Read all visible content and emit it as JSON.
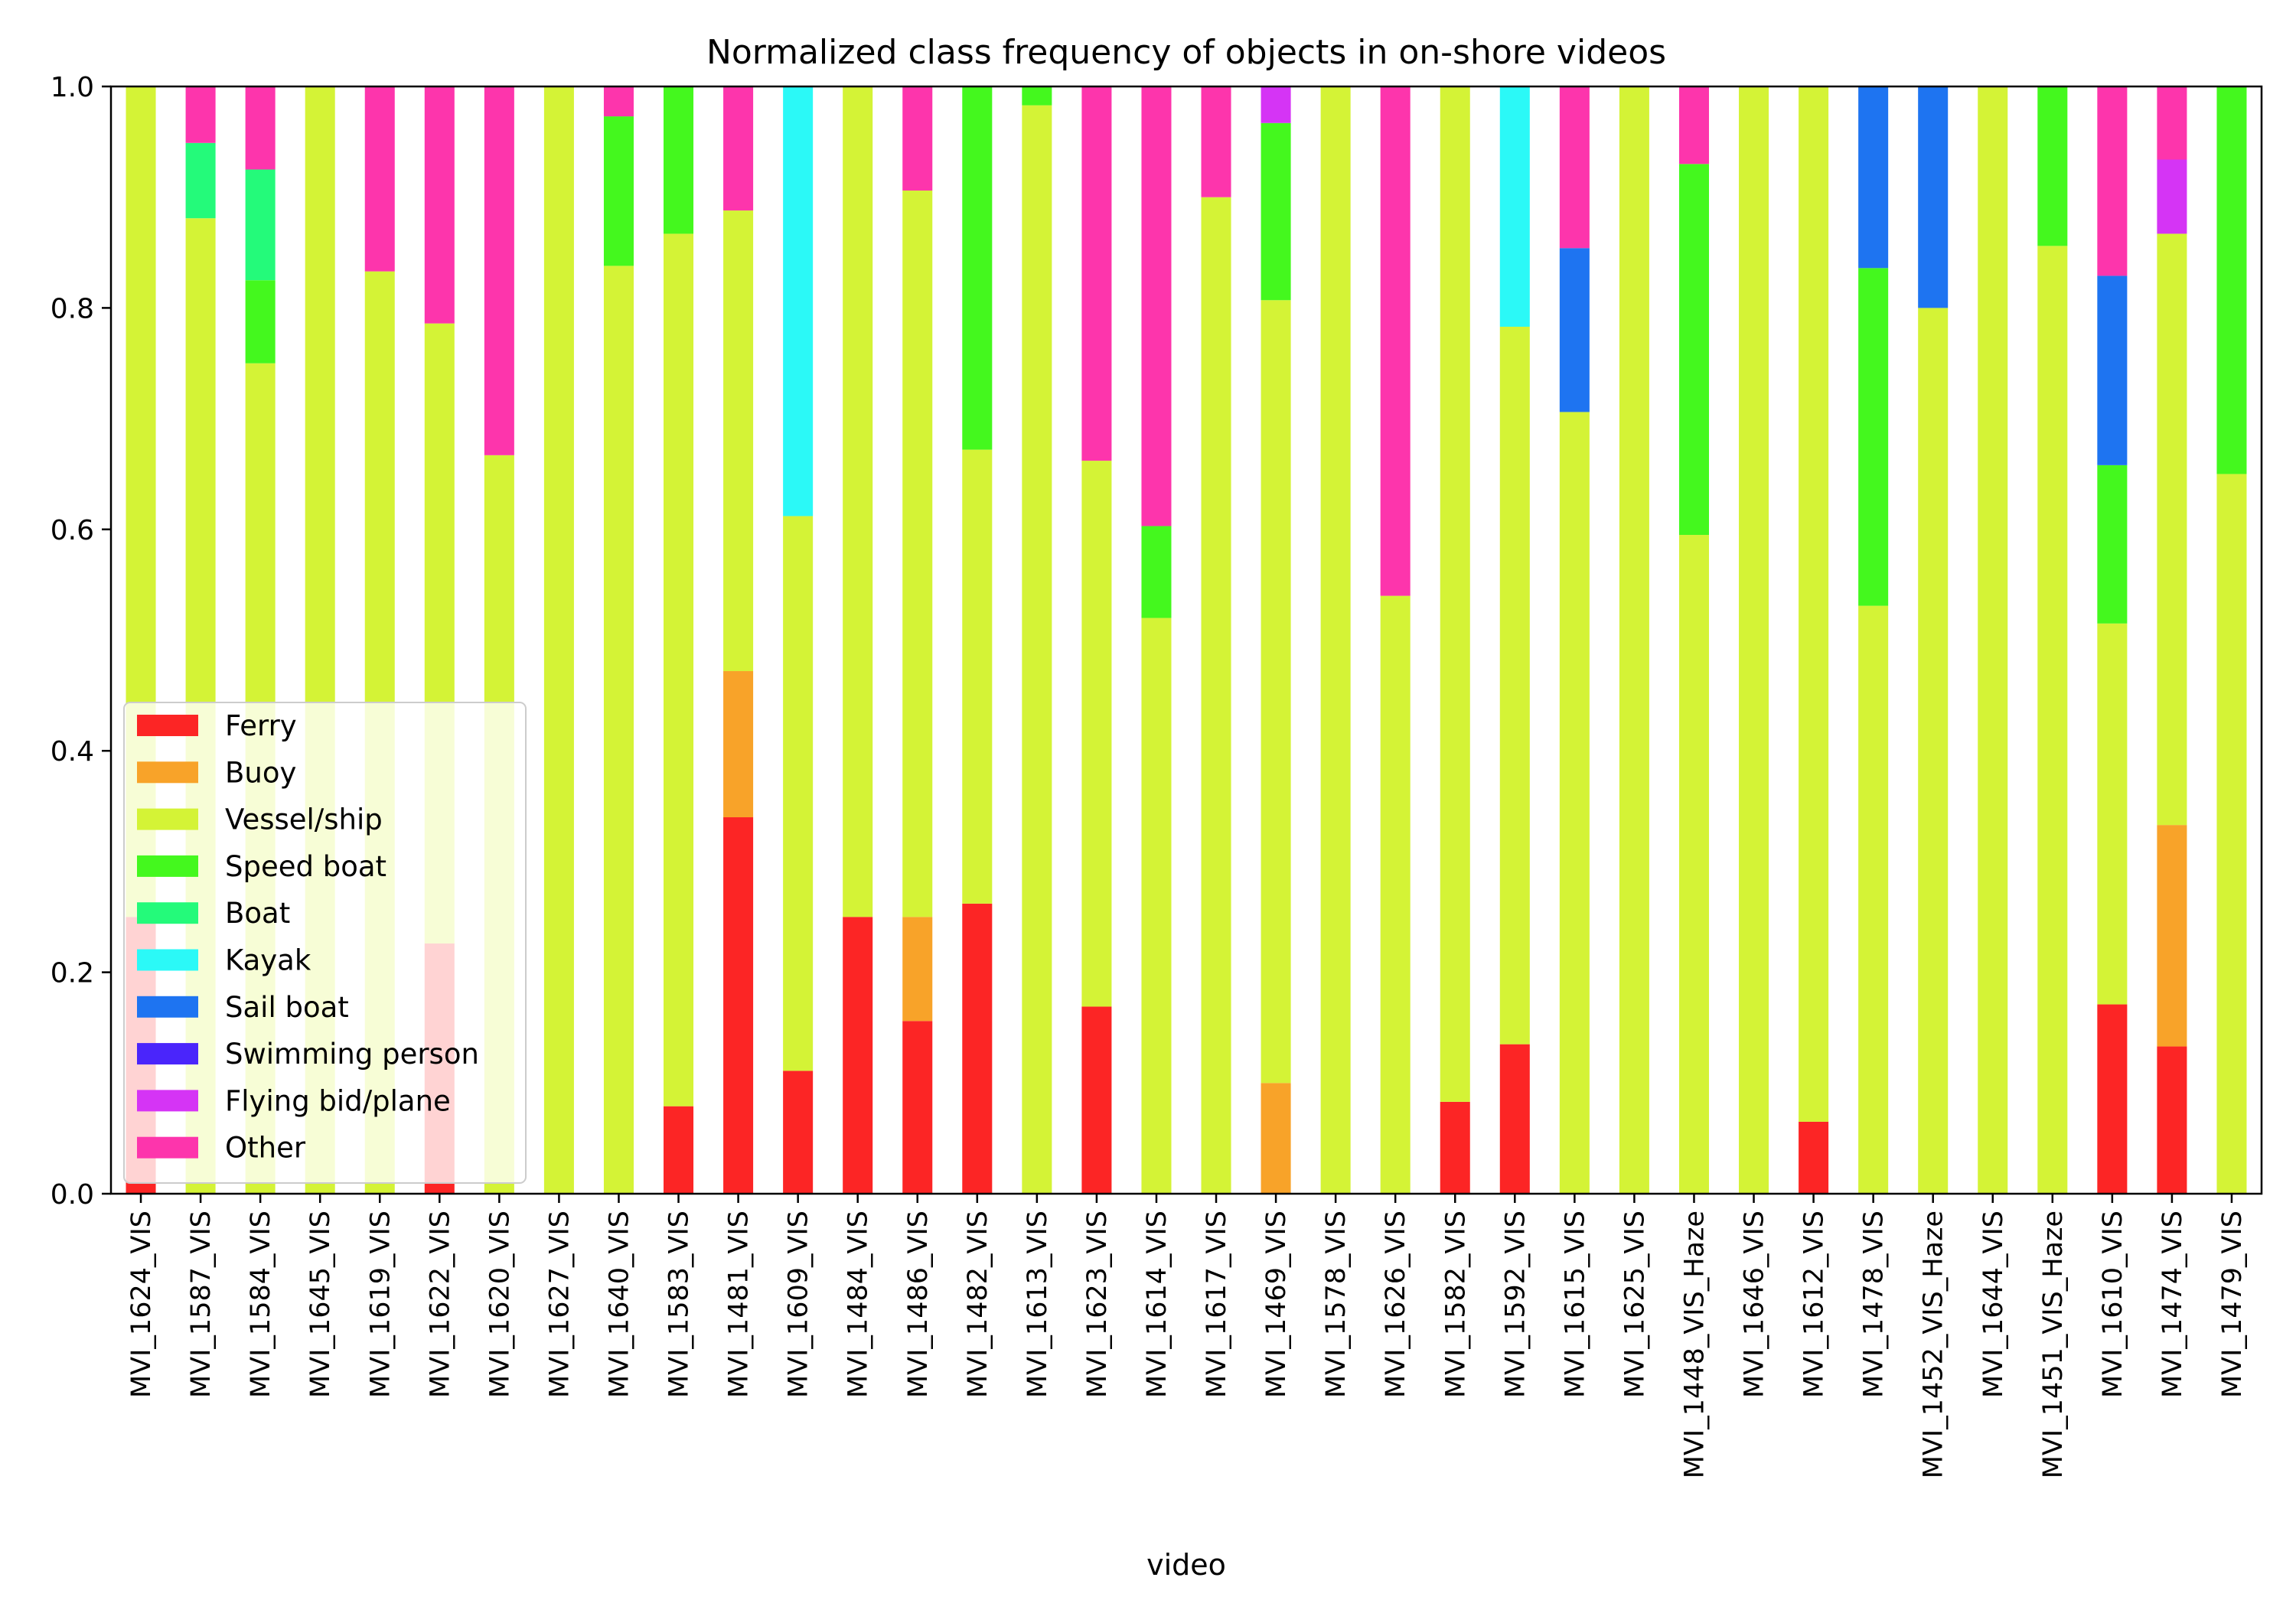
{
  "chart_data": {
    "type": "bar",
    "stacked": true,
    "title": "Normalized class frequency of objects in on-shore videos",
    "xlabel": "video",
    "ylabel": "",
    "ylim": [
      0.0,
      1.0
    ],
    "yticks": [
      "0.0",
      "0.2",
      "0.4",
      "0.6",
      "0.8",
      "1.0"
    ],
    "grid": false,
    "legend_position": "lower-left",
    "categories": [
      "MVI_1624_VIS",
      "MVI_1587_VIS",
      "MVI_1584_VIS",
      "MVI_1645_VIS",
      "MVI_1619_VIS",
      "MVI_1622_VIS",
      "MVI_1620_VIS",
      "MVI_1627_VIS",
      "MVI_1640_VIS",
      "MVI_1583_VIS",
      "MVI_1481_VIS",
      "MVI_1609_VIS",
      "MVI_1484_VIS",
      "MVI_1486_VIS",
      "MVI_1482_VIS",
      "MVI_1613_VIS",
      "MVI_1623_VIS",
      "MVI_1614_VIS",
      "MVI_1617_VIS",
      "MVI_1469_VIS",
      "MVI_1578_VIS",
      "MVI_1626_VIS",
      "MVI_1582_VIS",
      "MVI_1592_VIS",
      "MVI_1615_VIS",
      "MVI_1625_VIS",
      "MVI_1448_VIS_Haze",
      "MVI_1646_VIS",
      "MVI_1612_VIS",
      "MVI_1478_VIS",
      "MVI_1452_VIS_Haze",
      "MVI_1644_VIS",
      "MVI_1451_VIS_Haze",
      "MVI_1610_VIS",
      "MVI_1474_VIS",
      "MVI_1479_VIS"
    ],
    "series": [
      {
        "name": "Ferry",
        "color": "#fc2525",
        "values": [
          0.25,
          0,
          0,
          0,
          0,
          0.226,
          0,
          0,
          0,
          0.079,
          0.34,
          0.111,
          0.25,
          0.156,
          0.262,
          0,
          0.169,
          0,
          0,
          0,
          0,
          0,
          0.083,
          0.135,
          0,
          0,
          0,
          0,
          0.065,
          0,
          0,
          0,
          0,
          0.171,
          0.133,
          0
        ]
      },
      {
        "name": "Buoy",
        "color": "#f8a329",
        "values": [
          0,
          0,
          0,
          0,
          0,
          0,
          0,
          0,
          0,
          0,
          0.132,
          0,
          0,
          0.094,
          0,
          0,
          0,
          0,
          0,
          0.1,
          0,
          0,
          0,
          0,
          0,
          0,
          0,
          0,
          0,
          0,
          0,
          0,
          0,
          0,
          0.2,
          0
        ]
      },
      {
        "name": "Vessel/ship",
        "color": "#d4f336",
        "values": [
          0.75,
          0.881,
          0.75,
          1.0,
          0.833,
          0.56,
          0.667,
          1.0,
          0.838,
          0.788,
          0.416,
          0.501,
          0.75,
          0.656,
          0.41,
          0.983,
          0.493,
          0.52,
          0.9,
          0.707,
          1.0,
          0.54,
          0.917,
          0.648,
          0.706,
          1.0,
          0.595,
          1.0,
          0.935,
          0.531,
          0.8,
          1.0,
          0.856,
          0.344,
          0.534,
          0.65
        ]
      },
      {
        "name": "Speed boat",
        "color": "#44f81e",
        "values": [
          0,
          0,
          0.075,
          0,
          0,
          0,
          0,
          0,
          0.135,
          0.133,
          0,
          0,
          0,
          0,
          0.328,
          0.017,
          0,
          0.083,
          0,
          0.16,
          0,
          0,
          0,
          0,
          0,
          0,
          0.335,
          0,
          0,
          0.305,
          0,
          0,
          0.144,
          0.143,
          0,
          0.35
        ]
      },
      {
        "name": "Boat",
        "color": "#24fa7a",
        "values": [
          0,
          0.068,
          0.1,
          0,
          0,
          0,
          0,
          0,
          0,
          0,
          0,
          0,
          0,
          0,
          0,
          0,
          0,
          0,
          0,
          0,
          0,
          0,
          0,
          0,
          0,
          0,
          0,
          0,
          0,
          0,
          0,
          0,
          0,
          0,
          0,
          0
        ]
      },
      {
        "name": "Kayak",
        "color": "#2bf9f7",
        "values": [
          0,
          0,
          0,
          0,
          0,
          0,
          0,
          0,
          0,
          0,
          0,
          0.388,
          0,
          0,
          0,
          0,
          0,
          0,
          0,
          0,
          0,
          0,
          0,
          0.217,
          0,
          0,
          0,
          0,
          0,
          0,
          0,
          0,
          0,
          0,
          0,
          0
        ]
      },
      {
        "name": "Sail boat",
        "color": "#1e74f1",
        "values": [
          0,
          0,
          0,
          0,
          0,
          0,
          0,
          0,
          0,
          0,
          0,
          0,
          0,
          0,
          0,
          0,
          0,
          0,
          0,
          0,
          0,
          0,
          0,
          0,
          0.148,
          0,
          0,
          0,
          0,
          0.164,
          0.2,
          0,
          0,
          0.171,
          0,
          0
        ]
      },
      {
        "name": "Swimming person",
        "color": "#4a25fb",
        "values": [
          0,
          0,
          0,
          0,
          0,
          0,
          0,
          0,
          0,
          0,
          0,
          0,
          0,
          0,
          0,
          0,
          0,
          0,
          0,
          0,
          0,
          0,
          0,
          0,
          0,
          0,
          0,
          0,
          0,
          0,
          0,
          0,
          0,
          0,
          0,
          0
        ]
      },
      {
        "name": "Flying bid/plane",
        "color": "#d534f5",
        "values": [
          0,
          0,
          0,
          0,
          0,
          0,
          0,
          0,
          0,
          0,
          0,
          0,
          0,
          0,
          0,
          0,
          0,
          0,
          0,
          0.033,
          0,
          0,
          0,
          0,
          0,
          0,
          0,
          0,
          0,
          0,
          0,
          0,
          0,
          0,
          0.067,
          0
        ]
      },
      {
        "name": "Other",
        "color": "#fd35ac",
        "values": [
          0,
          0.051,
          0.075,
          0,
          0.167,
          0.214,
          0.333,
          0,
          0.027,
          0,
          0.112,
          0,
          0,
          0.094,
          0,
          0,
          0.338,
          0.397,
          0.1,
          0,
          0,
          0.46,
          0,
          0,
          0.146,
          0,
          0.07,
          0,
          0,
          0,
          0,
          0,
          0,
          0.171,
          0.066,
          0
        ]
      }
    ]
  }
}
